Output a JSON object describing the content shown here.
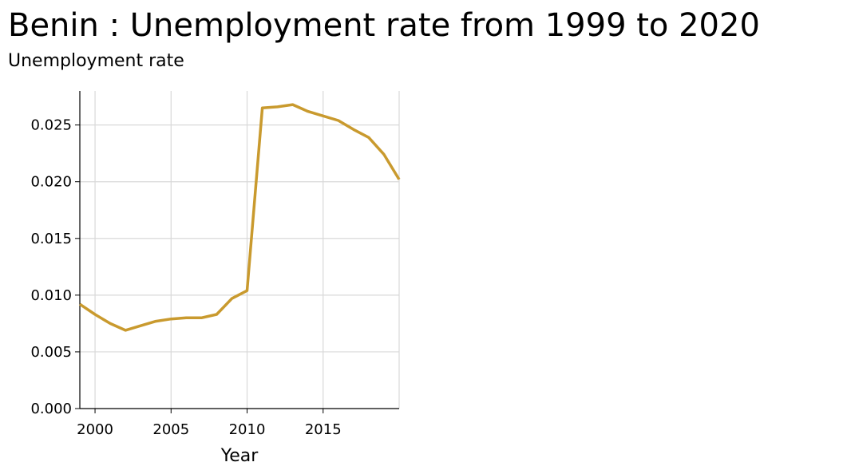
{
  "title": "Benin : Unemployment rate from 1999 to 2020",
  "subtitle": "Unemployment rate",
  "colors": {
    "line": "#c99a2e",
    "grid": "#d9d9d9",
    "axis": "#000000",
    "background": "#ffffff"
  },
  "chart_data": {
    "type": "line",
    "title": "Benin : Unemployment rate from 1999 to 2020",
    "ylabel": "Unemployment rate",
    "xlabel": "Year",
    "xlim": [
      1999,
      2020
    ],
    "ylim": [
      0,
      0.028
    ],
    "x_ticks": [
      2000,
      2005,
      2010,
      2015
    ],
    "x_tick_labels": [
      "2000",
      "2005",
      "2010",
      "2015"
    ],
    "y_ticks": [
      0,
      0.005,
      0.01,
      0.015,
      0.02,
      0.025
    ],
    "y_tick_labels": [
      "0.000",
      "0.005",
      "0.010",
      "0.015",
      "0.020",
      "0.025"
    ],
    "grid": true,
    "x": [
      1999,
      2000,
      2001,
      2002,
      2003,
      2004,
      2005,
      2006,
      2007,
      2008,
      2009,
      2010,
      2011,
      2012,
      2013,
      2014,
      2015,
      2016,
      2017,
      2018,
      2019,
      2020
    ],
    "series": [
      {
        "values": [
          0.0092,
          0.0083,
          0.0075,
          0.0069,
          0.0073,
          0.0077,
          0.0079,
          0.008,
          0.008,
          0.0083,
          0.0097,
          0.0104,
          0.0265,
          0.0266,
          0.0268,
          0.0262,
          0.0258,
          0.0254,
          0.0246,
          0.0239,
          0.0224,
          0.0202
        ]
      }
    ]
  }
}
